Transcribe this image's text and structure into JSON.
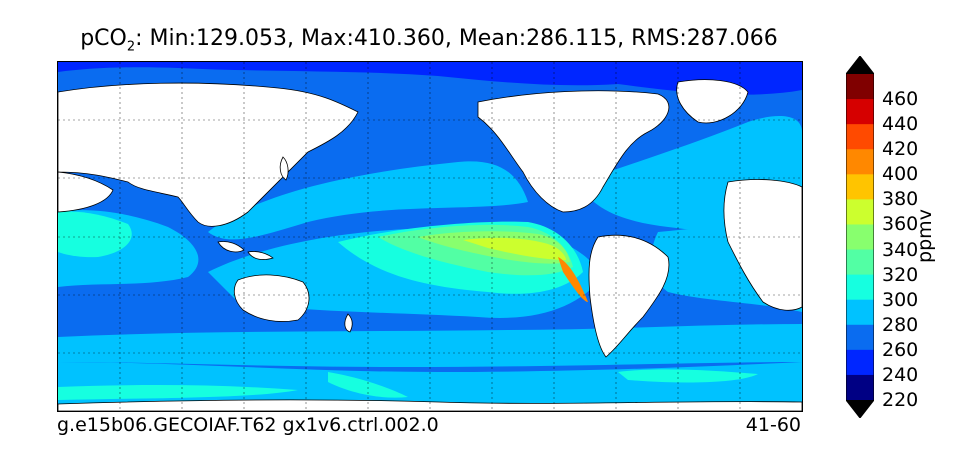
{
  "title": {
    "variable": "pCO",
    "subscript": "2",
    "stats": ": Min:129.053, Max:410.360, Mean:286.115, RMS:287.066"
  },
  "caption": {
    "case": "g.e15b06.GECOIAF.T62 gx1v6.ctrl.002.0",
    "years": "41-60"
  },
  "colorbar": {
    "unit": "ppmv",
    "ticks": [
      "460",
      "440",
      "420",
      "400",
      "380",
      "360",
      "340",
      "320",
      "300",
      "280",
      "260",
      "240",
      "220"
    ],
    "levels": [
      {
        "value": 460,
        "color": "#800000"
      },
      {
        "value": 440,
        "color": "#d60000"
      },
      {
        "value": 420,
        "color": "#ff4a00"
      },
      {
        "value": 400,
        "color": "#ff8800"
      },
      {
        "value": 380,
        "color": "#ffc400"
      },
      {
        "value": 360,
        "color": "#ccff2e"
      },
      {
        "value": 340,
        "color": "#88ff6e"
      },
      {
        "value": 320,
        "color": "#52ffa4"
      },
      {
        "value": 300,
        "color": "#16ffe0"
      },
      {
        "value": 280,
        "color": "#00c2ff"
      },
      {
        "value": 260,
        "color": "#0a6cf0"
      },
      {
        "value": 240,
        "color": "#0026ff"
      },
      {
        "value": 220,
        "color": "#000084"
      }
    ],
    "over_color": "#000000",
    "under_color": "#000000"
  },
  "map": {
    "land_color": "#ffffff",
    "coastline_color": "#000000",
    "gridlines": true,
    "gridline_style": "dashed"
  }
}
